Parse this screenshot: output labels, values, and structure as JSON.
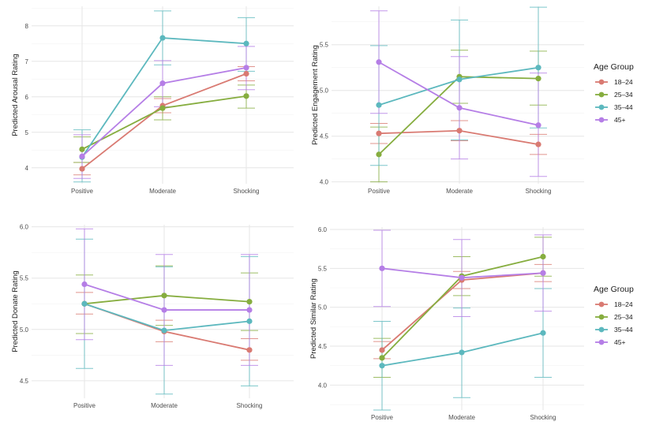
{
  "categories": [
    "Positive",
    "Moderate",
    "Shocking"
  ],
  "groups": [
    "18–24",
    "25–34",
    "35–44",
    "45+"
  ],
  "colors": [
    "#d97a72",
    "#86ad3f",
    "#5cb8be",
    "#b57ee6"
  ],
  "legends": [
    {
      "title": "Age Group",
      "panel": 1
    },
    {
      "title": "Age Group",
      "panel": 3
    }
  ],
  "chart_data": [
    {
      "type": "line",
      "ylabel": "Predicted Arousal Rating",
      "ylim": [
        3.55,
        8.55
      ],
      "yticks": [
        4,
        5,
        6,
        7,
        8
      ],
      "categories": [
        "Positive",
        "Moderate",
        "Shocking"
      ],
      "series": [
        {
          "name": "18–24",
          "values": [
            3.97,
            5.75,
            6.65
          ],
          "lower": [
            3.8,
            5.55,
            6.45
          ],
          "upper": [
            4.15,
            5.95,
            6.85
          ]
        },
        {
          "name": "25–34",
          "values": [
            4.52,
            5.68,
            6.02
          ],
          "lower": [
            4.15,
            5.35,
            5.68
          ],
          "upper": [
            4.87,
            6.0,
            6.33
          ]
        },
        {
          "name": "35–44",
          "values": [
            4.3,
            7.66,
            7.5
          ],
          "lower": [
            3.6,
            6.9,
            6.72
          ],
          "upper": [
            5.07,
            8.42,
            8.23
          ]
        },
        {
          "name": "45+",
          "values": [
            4.32,
            6.38,
            6.82
          ],
          "lower": [
            3.7,
            5.72,
            6.2
          ],
          "upper": [
            4.93,
            7.02,
            7.42
          ]
        }
      ]
    },
    {
      "type": "line",
      "ylabel": "Predicted Engagement Rating",
      "ylim": [
        3.98,
        5.92
      ],
      "yticks": [
        "4.0",
        "4.5",
        "5.0",
        "5.5"
      ],
      "categories": [
        "Positive",
        "Moderate",
        "Shocking"
      ],
      "series": [
        {
          "name": "18–24",
          "values": [
            4.53,
            4.56,
            4.41
          ],
          "lower": [
            4.42,
            4.45,
            4.3
          ],
          "upper": [
            4.64,
            4.67,
            4.52
          ]
        },
        {
          "name": "25–34",
          "values": [
            4.3,
            5.15,
            5.13
          ],
          "lower": [
            4.0,
            4.86,
            4.84
          ],
          "upper": [
            4.6,
            5.44,
            5.43
          ]
        },
        {
          "name": "35–44",
          "values": [
            4.84,
            5.12,
            5.25
          ],
          "lower": [
            4.18,
            4.46,
            4.59
          ],
          "upper": [
            5.49,
            5.77,
            5.91
          ]
        },
        {
          "name": "45+",
          "values": [
            5.31,
            4.81,
            4.62
          ],
          "lower": [
            4.75,
            4.25,
            4.06
          ],
          "upper": [
            5.87,
            5.37,
            5.19
          ]
        }
      ]
    },
    {
      "type": "line",
      "ylabel": "Predicted Donate Rating",
      "ylim": [
        4.33,
        6.02
      ],
      "yticks": [
        "4.5",
        "5.0",
        "5.5",
        "6.0"
      ],
      "categories": [
        "Positive",
        "Moderate",
        "Shocking"
      ],
      "series": [
        {
          "name": "18–24",
          "values": [
            5.25,
            4.98,
            4.8
          ],
          "lower": [
            5.15,
            4.88,
            4.7
          ],
          "upper": [
            5.36,
            5.09,
            4.91
          ]
        },
        {
          "name": "25–34",
          "values": [
            5.25,
            5.33,
            5.27
          ],
          "lower": [
            4.96,
            5.04,
            4.99
          ],
          "upper": [
            5.53,
            5.62,
            5.55
          ]
        },
        {
          "name": "35–44",
          "values": [
            5.25,
            4.99,
            5.08
          ],
          "lower": [
            4.62,
            4.37,
            4.45
          ],
          "upper": [
            5.88,
            5.61,
            5.71
          ]
        },
        {
          "name": "45+",
          "values": [
            5.44,
            5.19,
            5.19
          ],
          "lower": [
            4.9,
            4.65,
            4.65
          ],
          "upper": [
            5.98,
            5.73,
            5.73
          ]
        }
      ]
    },
    {
      "type": "line",
      "ylabel": "Predicted Similar Rating",
      "ylim": [
        3.68,
        6.03
      ],
      "yticks": [
        "4.0",
        "4.5",
        "5.0",
        "5.5",
        "6.0"
      ],
      "categories": [
        "Positive",
        "Moderate",
        "Shocking"
      ],
      "series": [
        {
          "name": "18–24",
          "values": [
            4.45,
            5.35,
            5.44
          ],
          "lower": [
            4.34,
            5.24,
            5.33
          ],
          "upper": [
            4.56,
            5.46,
            5.55
          ]
        },
        {
          "name": "25–34",
          "values": [
            4.35,
            5.4,
            5.65
          ],
          "lower": [
            4.1,
            5.15,
            5.4
          ],
          "upper": [
            4.6,
            5.65,
            5.9
          ]
        },
        {
          "name": "35–44",
          "values": [
            4.25,
            4.42,
            4.67
          ],
          "lower": [
            3.68,
            3.84,
            4.1
          ],
          "upper": [
            4.82,
            4.99,
            5.24
          ]
        },
        {
          "name": "45+",
          "values": [
            5.5,
            5.38,
            5.44
          ],
          "lower": [
            5.01,
            4.88,
            4.95
          ],
          "upper": [
            5.99,
            5.87,
            5.93
          ]
        }
      ]
    }
  ]
}
